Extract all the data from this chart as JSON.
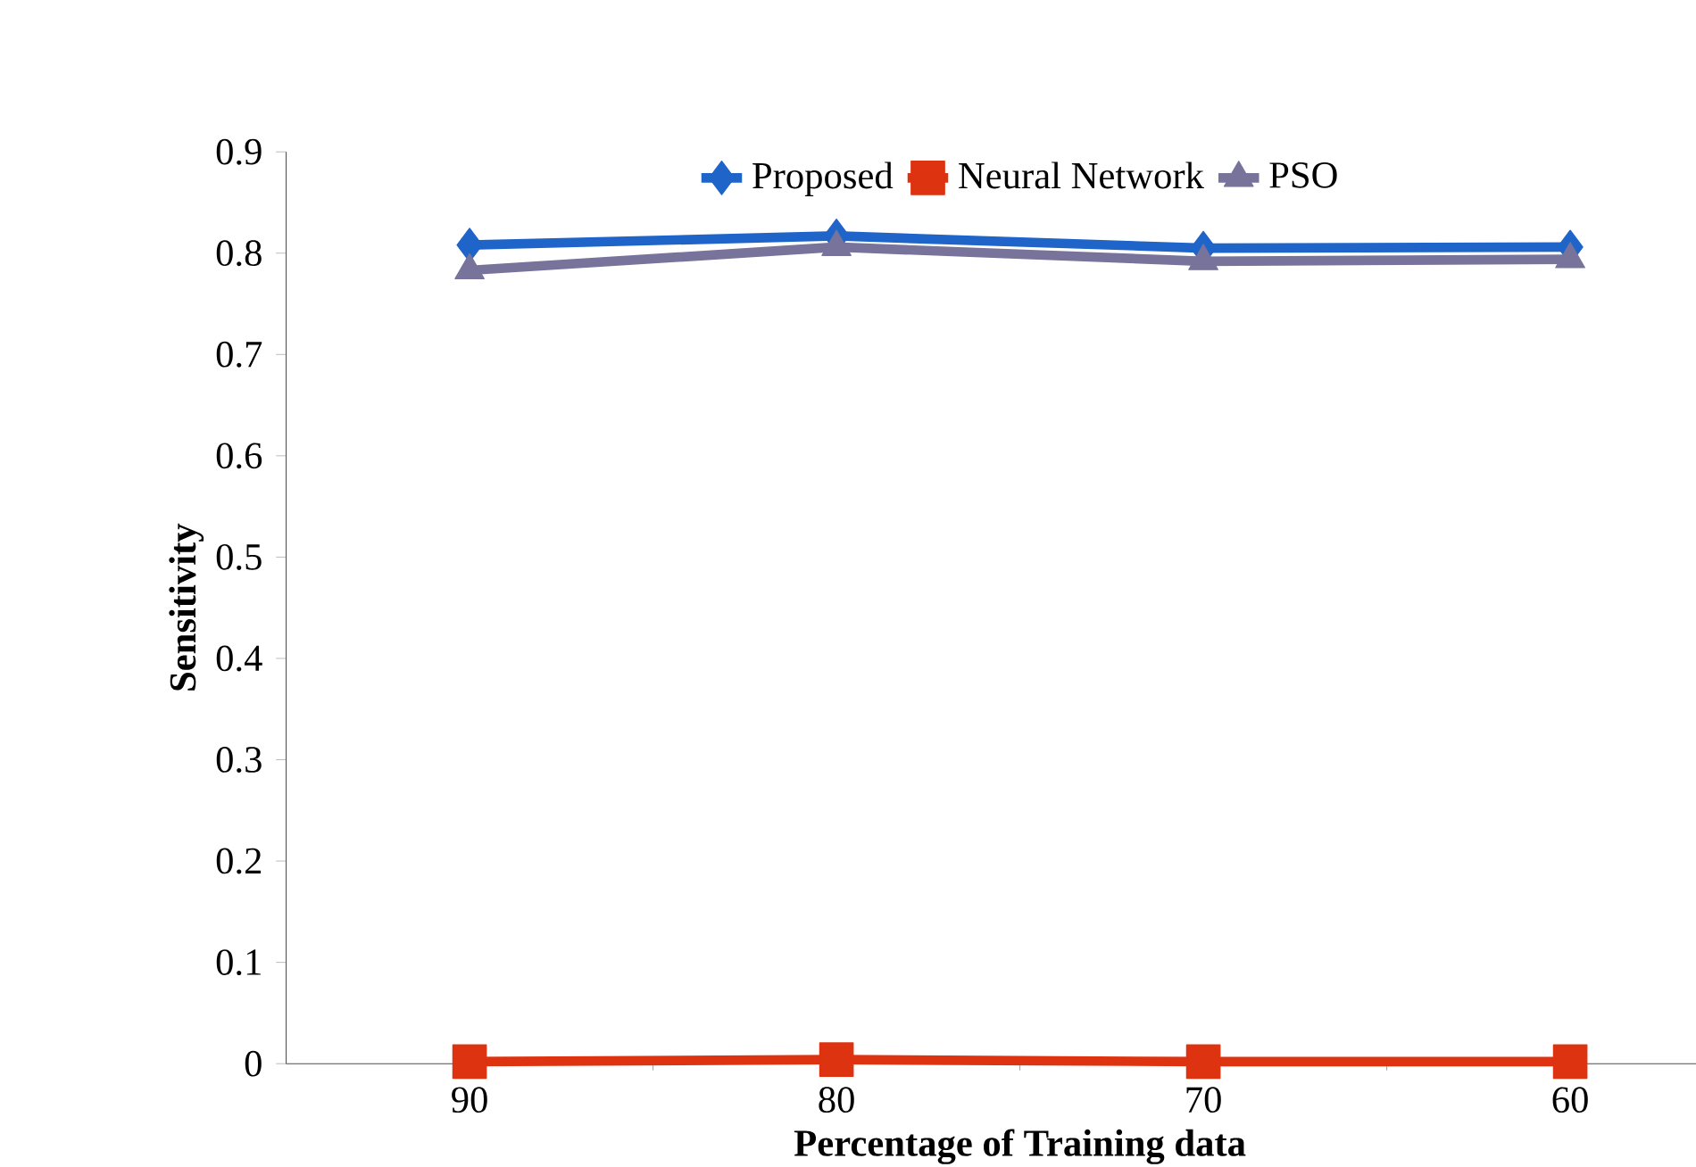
{
  "chart_data": {
    "type": "line",
    "xlabel": "Percentage of Training  data",
    "ylabel": "Sensitivity",
    "categories": [
      "90",
      "80",
      "70",
      "60"
    ],
    "series": [
      {
        "name": "Proposed",
        "color": "#1f64c8",
        "marker": "diamond",
        "values": [
          0.808,
          0.817,
          0.805,
          0.806
        ]
      },
      {
        "name": "Neural Network",
        "color": "#dd3311",
        "marker": "square",
        "values": [
          0.002,
          0.004,
          0.002,
          0.002
        ]
      },
      {
        "name": "PSO",
        "color": "#77739a",
        "marker": "triangle",
        "values": [
          0.783,
          0.806,
          0.792,
          0.794
        ]
      }
    ],
    "ylim": [
      0,
      0.9
    ],
    "yticks": [
      0,
      0.1,
      0.2,
      0.3,
      0.4,
      0.5,
      0.6,
      0.7,
      0.8,
      0.9
    ],
    "grid": false,
    "legend": "top",
    "line_style": "solid"
  }
}
